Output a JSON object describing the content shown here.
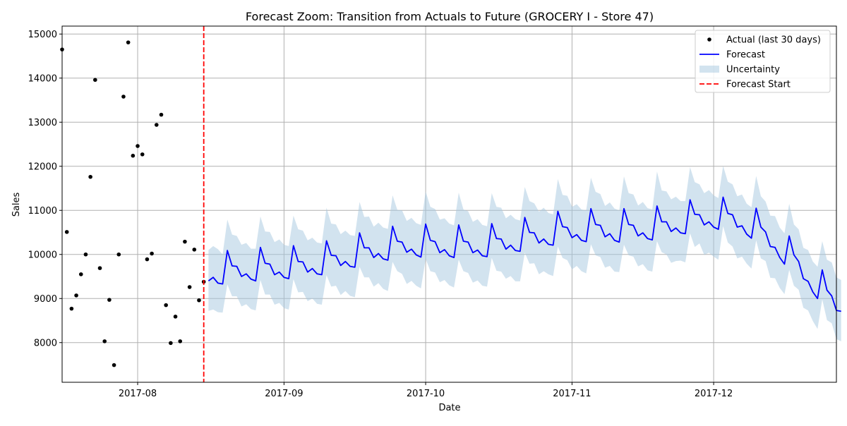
{
  "chart_data": {
    "type": "line",
    "title": "Forecast Zoom: Transition from Actuals to Future (GROCERY I - Store 47)",
    "xlabel": "Date",
    "ylabel": "Sales",
    "x_range": [
      "2017-07-16",
      "2017-12-27"
    ],
    "ylim": [
      7100,
      15180
    ],
    "grid": true,
    "legend_position": "top-right",
    "x_ticks": [
      {
        "date": "2017-08-01",
        "label": "2017-08"
      },
      {
        "date": "2017-09-01",
        "label": "2017-09"
      },
      {
        "date": "2017-10-01",
        "label": "2017-10"
      },
      {
        "date": "2017-11-01",
        "label": "2017-11"
      },
      {
        "date": "2017-12-01",
        "label": "2017-12"
      }
    ],
    "y_ticks": [
      8000,
      9000,
      10000,
      11000,
      12000,
      13000,
      14000,
      15000
    ],
    "colors": {
      "actual": "#000000",
      "forecast": "#0000ff",
      "uncertainty": "#a6c8e0",
      "forecast_start": "#ff0000",
      "grid": "#b0b0b0"
    },
    "forecast_start_date": "2017-08-15",
    "series": [
      {
        "name": "Actual (last 30 days)",
        "kind": "scatter",
        "points": [
          {
            "date": "2017-07-16",
            "value": 14650
          },
          {
            "date": "2017-07-17",
            "value": 10510
          },
          {
            "date": "2017-07-18",
            "value": 8770
          },
          {
            "date": "2017-07-19",
            "value": 9070
          },
          {
            "date": "2017-07-20",
            "value": 9550
          },
          {
            "date": "2017-07-21",
            "value": 10000
          },
          {
            "date": "2017-07-22",
            "value": 11760
          },
          {
            "date": "2017-07-23",
            "value": 13960
          },
          {
            "date": "2017-07-24",
            "value": 9690
          },
          {
            "date": "2017-07-25",
            "value": 8030
          },
          {
            "date": "2017-07-26",
            "value": 8970
          },
          {
            "date": "2017-07-27",
            "value": 7490
          },
          {
            "date": "2017-07-28",
            "value": 10000
          },
          {
            "date": "2017-07-29",
            "value": 13580
          },
          {
            "date": "2017-07-30",
            "value": 14810
          },
          {
            "date": "2017-07-31",
            "value": 12240
          },
          {
            "date": "2017-08-01",
            "value": 12460
          },
          {
            "date": "2017-08-02",
            "value": 12270
          },
          {
            "date": "2017-08-03",
            "value": 9890
          },
          {
            "date": "2017-08-04",
            "value": 10020
          },
          {
            "date": "2017-08-05",
            "value": 12940
          },
          {
            "date": "2017-08-06",
            "value": 13170
          },
          {
            "date": "2017-08-07",
            "value": 8850
          },
          {
            "date": "2017-08-08",
            "value": 7990
          },
          {
            "date": "2017-08-09",
            "value": 8590
          },
          {
            "date": "2017-08-10",
            "value": 8030
          },
          {
            "date": "2017-08-11",
            "value": 10290
          },
          {
            "date": "2017-08-12",
            "value": 9260
          },
          {
            "date": "2017-08-13",
            "value": 10110
          },
          {
            "date": "2017-08-14",
            "value": 8960
          },
          {
            "date": "2017-08-15",
            "value": 9380
          }
        ]
      },
      {
        "name": "Forecast",
        "kind": "line",
        "start_date": "2017-08-16",
        "values": [
          9400,
          9480,
          9350,
          9330,
          10090,
          9740,
          9730,
          9500,
          9560,
          9440,
          9400,
          10160,
          9800,
          9780,
          9540,
          9600,
          9480,
          9450,
          10200,
          9840,
          9830,
          9600,
          9680,
          9560,
          9540,
          10310,
          9980,
          9970,
          9750,
          9840,
          9730,
          9710,
          10490,
          10150,
          10150,
          9930,
          10020,
          9900,
          9870,
          10640,
          10300,
          10280,
          10050,
          10120,
          9990,
          9940,
          10690,
          10320,
          10290,
          10040,
          10110,
          9970,
          9930,
          10670,
          10300,
          10280,
          10040,
          10100,
          9970,
          9950,
          10700,
          10360,
          10350,
          10120,
          10210,
          10090,
          10070,
          10840,
          10500,
          10490,
          10260,
          10350,
          10230,
          10210,
          10980,
          10630,
          10610,
          10380,
          10450,
          10320,
          10290,
          11040,
          10680,
          10660,
          10400,
          10470,
          10320,
          10280,
          11040,
          10680,
          10660,
          10420,
          10490,
          10360,
          10330,
          11100,
          10740,
          10740,
          10520,
          10600,
          10490,
          10470,
          11240,
          10910,
          10900,
          10670,
          10740,
          10620,
          10570,
          11300,
          10930,
          10900,
          10620,
          10650,
          10460,
          10370,
          11050,
          10620,
          10510,
          10180,
          10160,
          9930,
          9780,
          10420,
          9990,
          9840,
          9450,
          9390,
          9150,
          9000,
          9650,
          9190,
          9060,
          8730,
          8710
        ]
      },
      {
        "name": "Uncertainty",
        "kind": "band",
        "start_date": "2017-08-16",
        "lower": [
          8720,
          8750,
          8690,
          8680,
          9320,
          9050,
          9050,
          8820,
          8870,
          8760,
          8730,
          9420,
          9090,
          9090,
          8860,
          8900,
          8780,
          8750,
          9440,
          9140,
          9150,
          8940,
          9000,
          8880,
          8860,
          9530,
          9270,
          9290,
          9080,
          9170,
          9060,
          9030,
          9720,
          9480,
          9480,
          9270,
          9350,
          9220,
          9170,
          9830,
          9620,
          9560,
          9330,
          9400,
          9290,
          9230,
          9900,
          9620,
          9590,
          9370,
          9420,
          9300,
          9250,
          9880,
          9620,
          9580,
          9360,
          9410,
          9290,
          9270,
          9920,
          9630,
          9610,
          9450,
          9510,
          9390,
          9390,
          10040,
          9790,
          9800,
          9550,
          9620,
          9550,
          9510,
          10180,
          9920,
          9870,
          9660,
          9740,
          9620,
          9570,
          10230,
          9980,
          9940,
          9700,
          9740,
          9610,
          9600,
          10220,
          9980,
          9950,
          9730,
          9780,
          9640,
          9610,
          10300,
          10050,
          10000,
          9810,
          9850,
          9860,
          9820,
          10480,
          10170,
          10250,
          9990,
          10040,
          9950,
          9880,
          10640,
          10270,
          10180,
          9910,
          9950,
          9790,
          9680,
          10320,
          9910,
          9850,
          9470,
          9460,
          9240,
          9100,
          9650,
          9290,
          9200,
          8790,
          8730,
          8490,
          8310,
          8980,
          8510,
          8440,
          8080,
          8030
        ],
        "upper": [
          10100,
          10190,
          10120,
          10000,
          10790,
          10450,
          10420,
          10220,
          10260,
          10130,
          10130,
          10860,
          10520,
          10510,
          10280,
          10340,
          10220,
          10190,
          10880,
          10570,
          10540,
          10320,
          10380,
          10270,
          10250,
          11060,
          10700,
          10680,
          10460,
          10540,
          10440,
          10420,
          11190,
          10850,
          10860,
          10630,
          10720,
          10610,
          10580,
          11340,
          11010,
          11000,
          10760,
          10830,
          10710,
          10670,
          11430,
          11080,
          11030,
          10790,
          10820,
          10700,
          10660,
          11400,
          11020,
          10980,
          10740,
          10800,
          10670,
          10640,
          11390,
          11080,
          11060,
          10820,
          10900,
          10800,
          10770,
          11530,
          11210,
          11160,
          10970,
          11060,
          10940,
          10910,
          11710,
          11350,
          11330,
          11080,
          11140,
          11020,
          11000,
          11740,
          11420,
          11370,
          11100,
          11180,
          11040,
          11000,
          11770,
          11390,
          11360,
          11110,
          11190,
          11050,
          11020,
          11880,
          11450,
          11430,
          11250,
          11310,
          11210,
          11210,
          11980,
          11640,
          11590,
          11390,
          11460,
          11340,
          11280,
          12010,
          11650,
          11590,
          11320,
          11360,
          11150,
          11070,
          11780,
          11320,
          11200,
          10880,
          10870,
          10610,
          10480,
          11150,
          10680,
          10570,
          10150,
          10100,
          9840,
          9720,
          10300,
          9880,
          9820,
          9480,
          9420
        ]
      },
      {
        "name": "Forecast Start",
        "kind": "vline",
        "date": "2017-08-15"
      }
    ]
  }
}
